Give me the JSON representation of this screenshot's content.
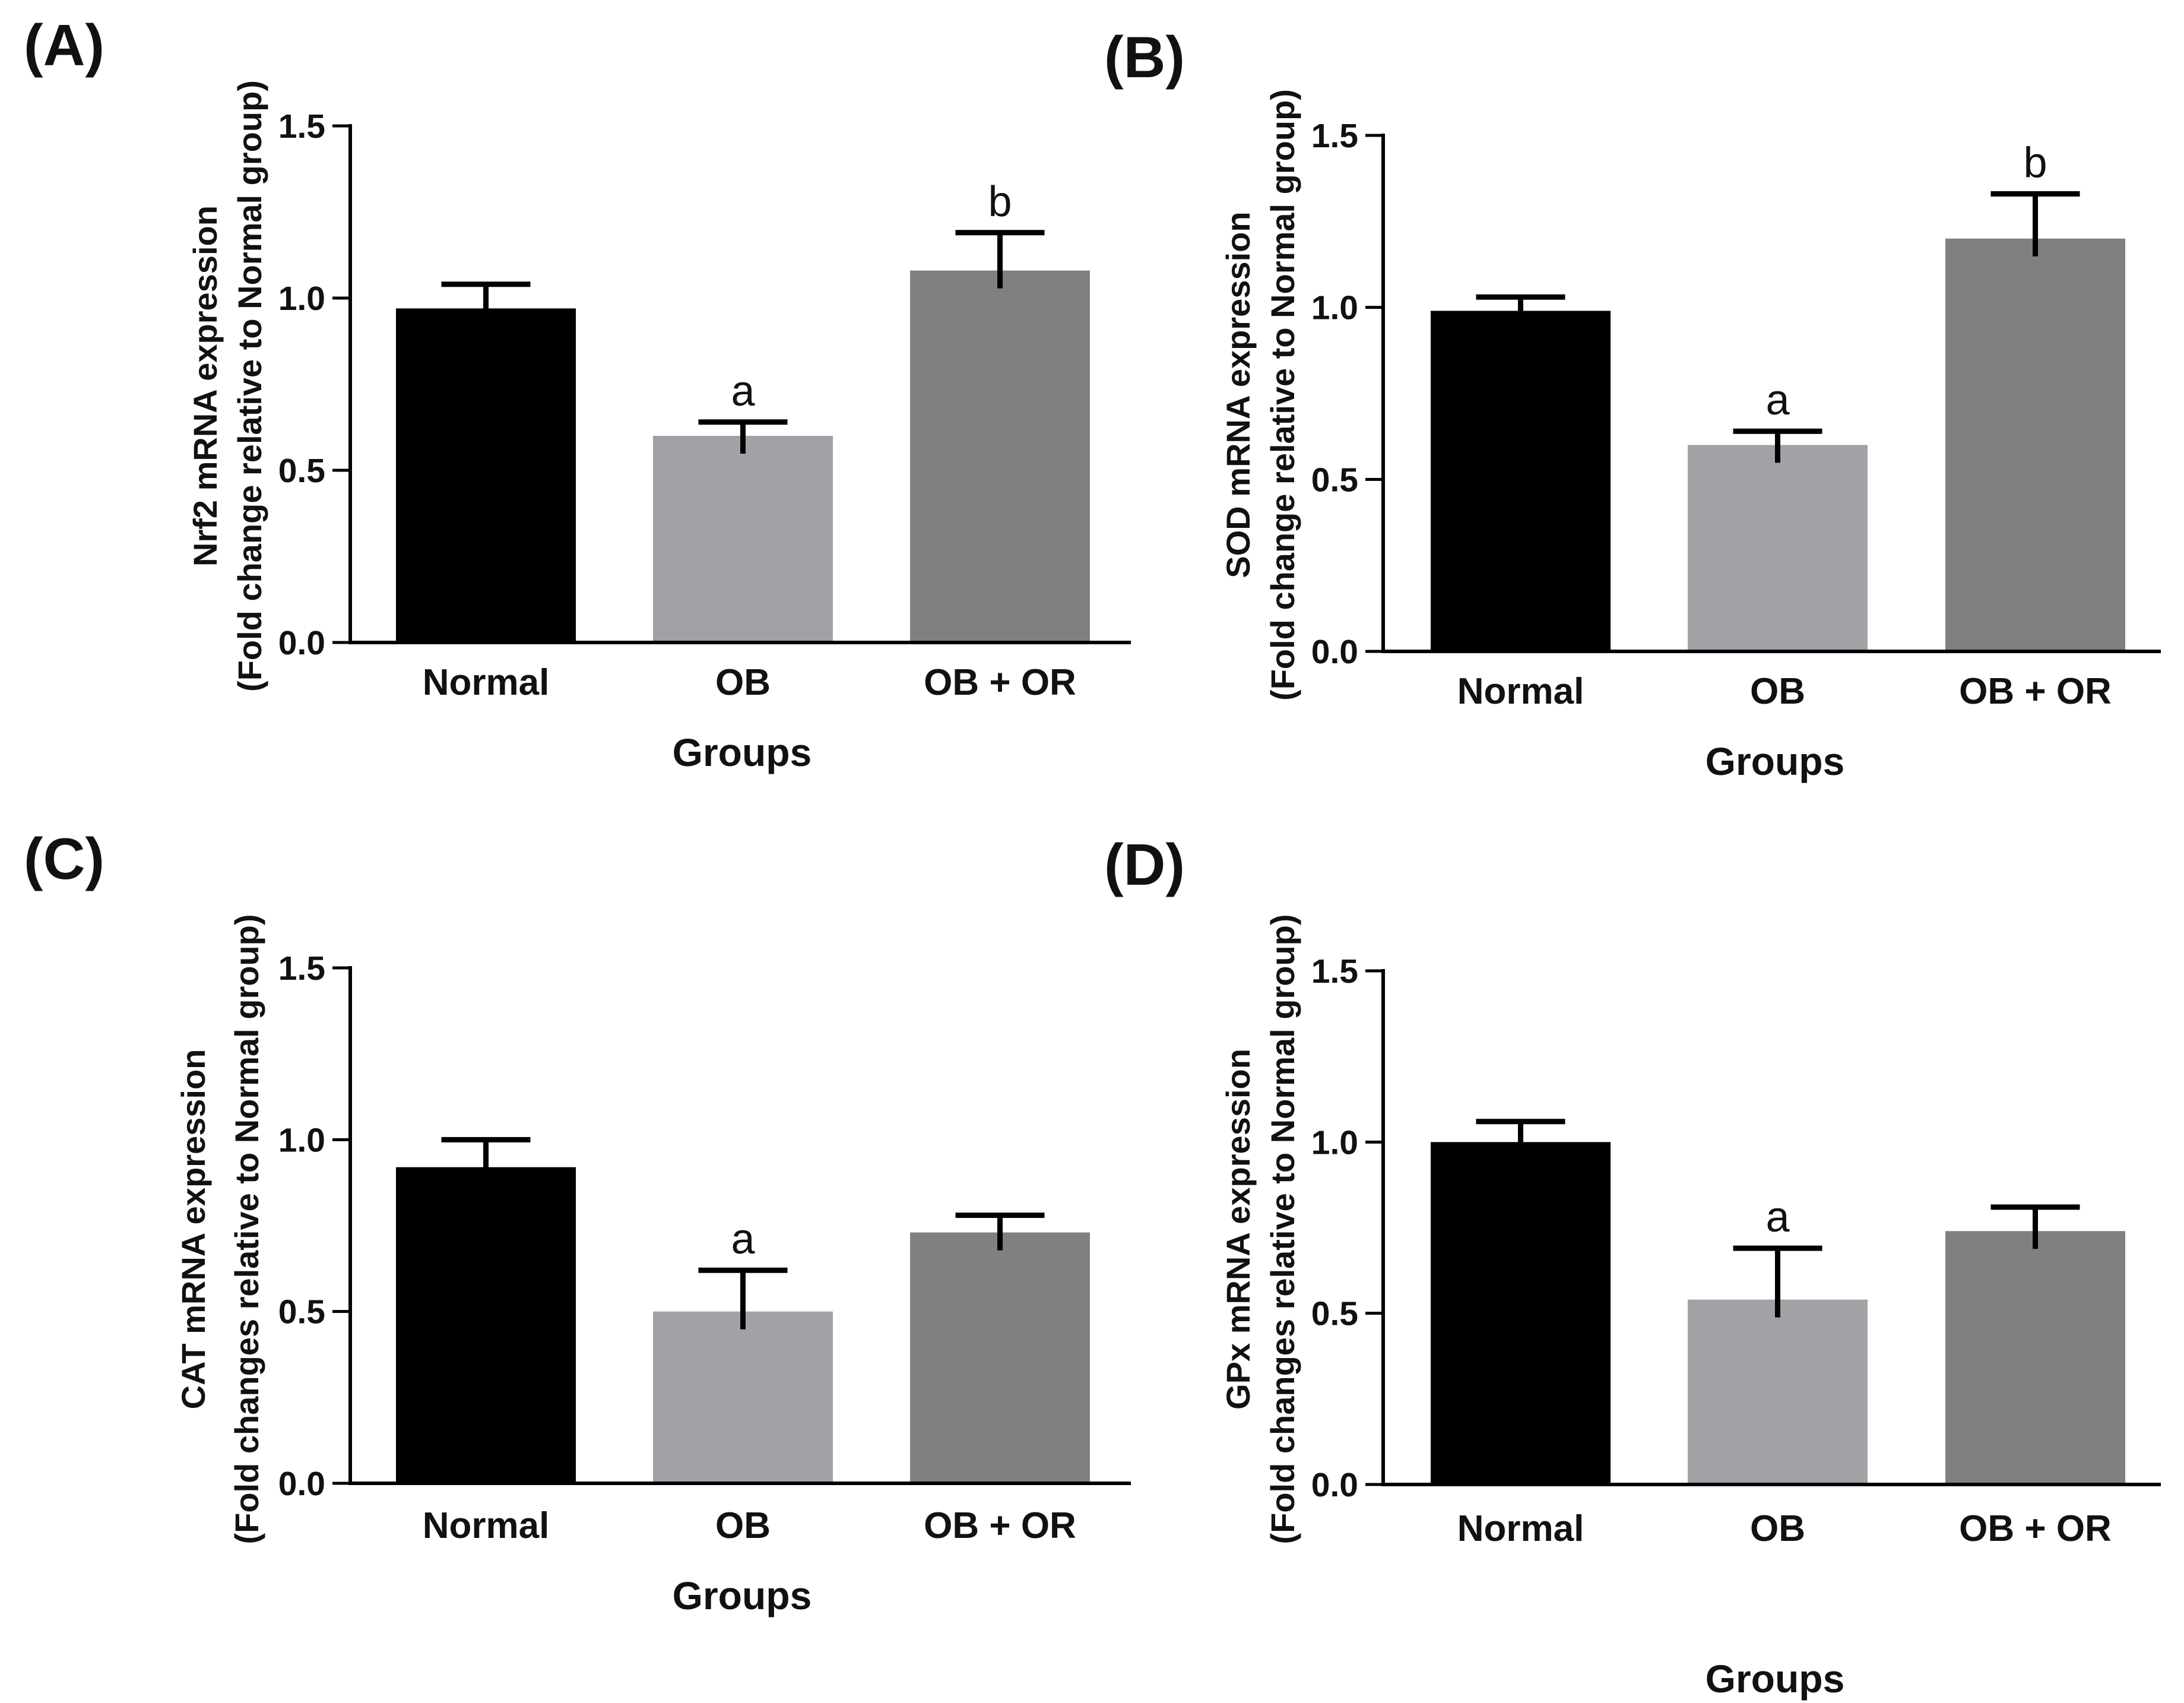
{
  "chart_data": [
    {
      "panel": "(A)",
      "type": "bar",
      "categories": [
        "Normal",
        "OB",
        "OB + OR"
      ],
      "values": [
        0.97,
        0.6,
        1.08
      ],
      "errors": [
        0.07,
        0.04,
        0.11
      ],
      "significance": [
        "",
        "a",
        "b"
      ],
      "colors": [
        "#000000",
        "#a2a2a6",
        "#808080"
      ],
      "ylabel_lines": [
        "Nrf2 mRNA expression",
        "(Fold change relative to Normal group)"
      ],
      "xlabel": "Groups",
      "ylim": [
        0,
        1.5
      ],
      "yticks": [
        0.0,
        0.5,
        1.0,
        1.5
      ],
      "ytick_labels": [
        "0.0",
        "0.5",
        "1.0",
        "1.5"
      ]
    },
    {
      "panel": "(B)",
      "type": "bar",
      "categories": [
        "Normal",
        "OB",
        "OB + OR"
      ],
      "values": [
        0.99,
        0.6,
        1.2
      ],
      "errors": [
        0.04,
        0.04,
        0.13
      ],
      "significance": [
        "",
        "a",
        "b"
      ],
      "colors": [
        "#000000",
        "#a2a2a6",
        "#808080"
      ],
      "ylabel_lines": [
        "SOD mRNA expression",
        "(Fold change relative to Normal group)"
      ],
      "xlabel": "Groups",
      "ylim": [
        0,
        1.5
      ],
      "yticks": [
        0.0,
        0.5,
        1.0,
        1.5
      ],
      "ytick_labels": [
        "0.0",
        "0.5",
        "1.0",
        "1.5"
      ]
    },
    {
      "panel": "(C)",
      "type": "bar",
      "categories": [
        "Normal",
        "OB",
        "OB + OR"
      ],
      "values": [
        0.92,
        0.5,
        0.73
      ],
      "errors": [
        0.08,
        0.12,
        0.05
      ],
      "significance": [
        "",
        "a",
        ""
      ],
      "colors": [
        "#000000",
        "#a2a2a6",
        "#808080"
      ],
      "ylabel_lines": [
        "CAT mRNA expression",
        "(Fold changes relative to Normal group)"
      ],
      "xlabel": "Groups",
      "ylim": [
        0,
        1.5
      ],
      "yticks": [
        0.0,
        0.5,
        1.0,
        1.5
      ],
      "ytick_labels": [
        "0.0",
        "0.5",
        "1.0",
        "1.5"
      ]
    },
    {
      "panel": "(D)",
      "type": "bar",
      "categories": [
        "Normal",
        "OB",
        "OB + OR"
      ],
      "values": [
        1.0,
        0.54,
        0.74
      ],
      "errors": [
        0.06,
        0.15,
        0.07
      ],
      "significance": [
        "",
        "a",
        ""
      ],
      "colors": [
        "#000000",
        "#a2a2a6",
        "#808080"
      ],
      "ylabel_lines": [
        "GPx mRNA expression",
        "(Fold changes relative to Normal group)"
      ],
      "xlabel": "Groups",
      "ylim": [
        0,
        1.5
      ],
      "yticks": [
        0.0,
        0.5,
        1.0,
        1.5
      ],
      "ytick_labels": [
        "0.0",
        "0.5",
        "1.0",
        "1.5"
      ]
    }
  ]
}
